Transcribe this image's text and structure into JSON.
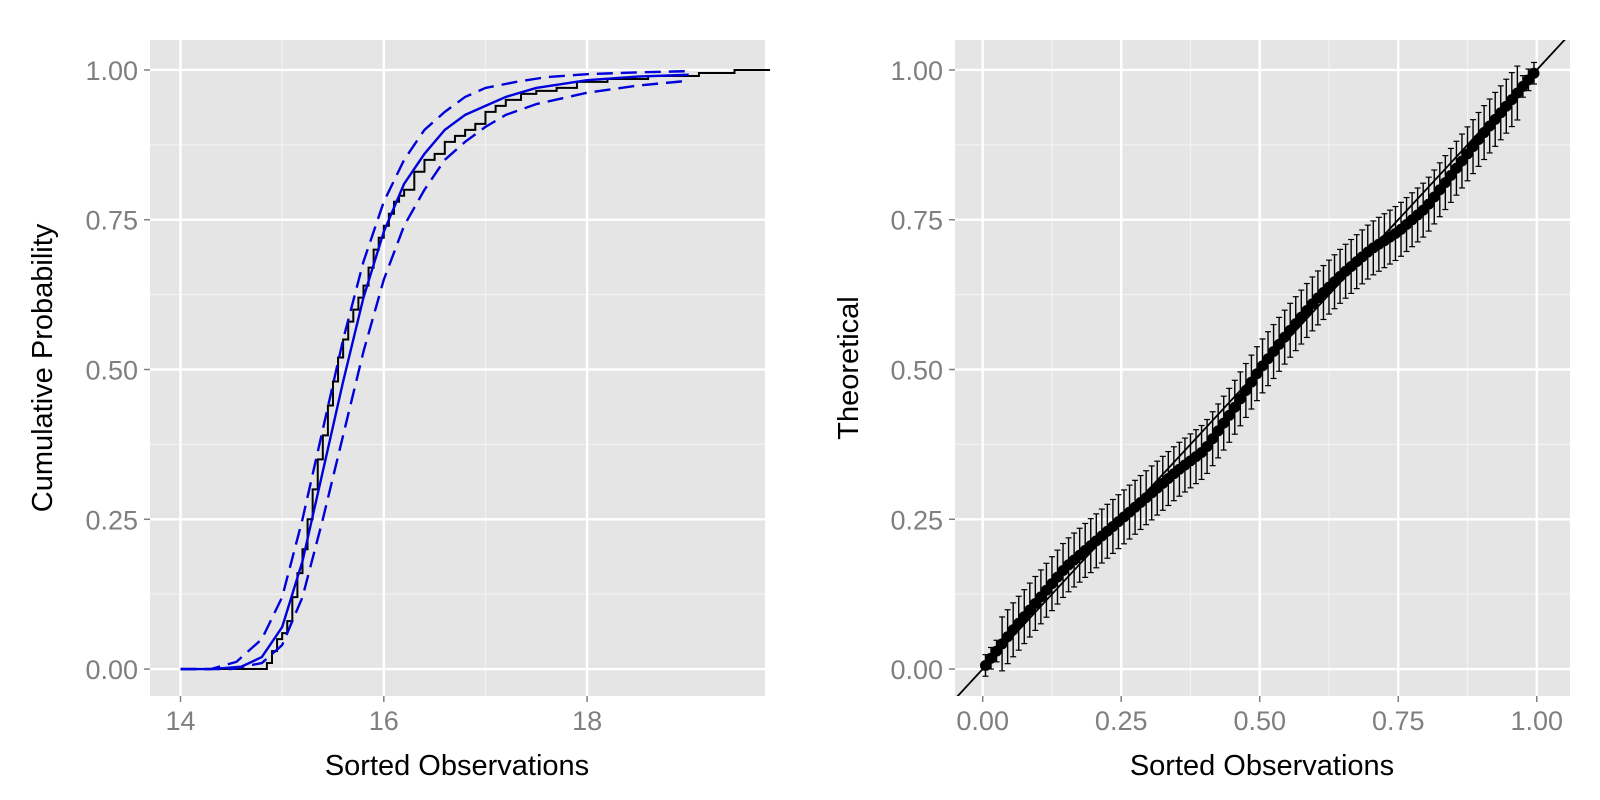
{
  "colors": {
    "panel_bg": "#e5e5e5",
    "grid_major": "#ffffff",
    "grid_minor": "#f2f2f2",
    "tick_label": "#7f7f7f",
    "ecdf": "#000000",
    "fit": "#0000dd",
    "points": "#000000"
  },
  "chart_data": [
    {
      "type": "line",
      "xlabel": "Sorted Observations",
      "ylabel": "Cumulative Probability",
      "xlim": [
        13.7,
        19.75
      ],
      "ylim": [
        -0.045,
        1.05
      ],
      "xticks": [
        14,
        16,
        18
      ],
      "xtick_labels": [
        "14",
        "16",
        "18"
      ],
      "yticks": [
        0,
        0.25,
        0.5,
        0.75,
        1
      ],
      "ytick_labels": [
        "0.00",
        "0.25",
        "0.50",
        "0.75",
        "1.00"
      ],
      "grid": true,
      "series": [
        {
          "style": "step",
          "x": [
            14.0,
            14.85,
            14.9,
            14.95,
            15.0,
            15.05,
            15.1,
            15.15,
            15.2,
            15.25,
            15.3,
            15.35,
            15.4,
            15.45,
            15.5,
            15.55,
            15.6,
            15.65,
            15.7,
            15.75,
            15.8,
            15.85,
            15.9,
            15.95,
            16.0,
            16.05,
            16.1,
            16.15,
            16.2,
            16.3,
            16.4,
            16.5,
            16.6,
            16.7,
            16.8,
            16.9,
            17.0,
            17.1,
            17.2,
            17.35,
            17.5,
            17.7,
            17.9,
            18.2,
            18.6,
            19.1,
            19.45
          ],
          "y": [
            0.0,
            0.01,
            0.03,
            0.05,
            0.06,
            0.08,
            0.12,
            0.16,
            0.2,
            0.25,
            0.3,
            0.35,
            0.39,
            0.44,
            0.48,
            0.52,
            0.55,
            0.58,
            0.6,
            0.62,
            0.64,
            0.67,
            0.7,
            0.72,
            0.74,
            0.76,
            0.78,
            0.79,
            0.8,
            0.83,
            0.85,
            0.86,
            0.88,
            0.89,
            0.9,
            0.91,
            0.93,
            0.94,
            0.95,
            0.96,
            0.965,
            0.97,
            0.98,
            0.985,
            0.99,
            0.995,
            1.0
          ]
        },
        {
          "style": "solid",
          "x": [
            14.0,
            14.3,
            14.6,
            14.8,
            15.0,
            15.2,
            15.4,
            15.6,
            15.8,
            16.0,
            16.2,
            16.4,
            16.6,
            16.8,
            17.0,
            17.2,
            17.5,
            18.0,
            18.5,
            19.0
          ],
          "y": [
            0.0,
            0.0,
            0.004,
            0.02,
            0.07,
            0.18,
            0.33,
            0.48,
            0.62,
            0.73,
            0.81,
            0.86,
            0.9,
            0.925,
            0.94,
            0.955,
            0.97,
            0.983,
            0.989,
            0.992
          ]
        },
        {
          "style": "dashed",
          "x": [
            14.0,
            14.3,
            14.55,
            14.8,
            15.0,
            15.2,
            15.4,
            15.6,
            15.8,
            16.0,
            16.2,
            16.4,
            16.6,
            16.8,
            17.0,
            17.3,
            17.6,
            18.0,
            18.5,
            19.0
          ],
          "y": [
            0.0,
            0.0,
            0.012,
            0.05,
            0.12,
            0.25,
            0.4,
            0.55,
            0.68,
            0.78,
            0.85,
            0.9,
            0.93,
            0.955,
            0.97,
            0.98,
            0.988,
            0.993,
            0.996,
            0.998
          ]
        },
        {
          "style": "dashed",
          "x": [
            14.0,
            14.5,
            14.8,
            15.0,
            15.2,
            15.4,
            15.6,
            15.8,
            16.0,
            16.2,
            16.4,
            16.6,
            16.8,
            17.0,
            17.2,
            17.5,
            18.0,
            18.5,
            19.0
          ],
          "y": [
            0.0,
            0.0,
            0.01,
            0.04,
            0.12,
            0.25,
            0.39,
            0.53,
            0.65,
            0.74,
            0.8,
            0.85,
            0.88,
            0.905,
            0.925,
            0.943,
            0.962,
            0.974,
            0.982
          ]
        }
      ]
    },
    {
      "type": "scatter",
      "xlabel": "Sorted Observations",
      "ylabel": "Theoretical",
      "xlim": [
        -0.05,
        1.06
      ],
      "ylim": [
        -0.045,
        1.05
      ],
      "xticks": [
        0,
        0.25,
        0.5,
        0.75,
        1
      ],
      "xtick_labels": [
        "0.00",
        "0.25",
        "0.50",
        "0.75",
        "1.00"
      ],
      "yticks": [
        0,
        0.25,
        0.5,
        0.75,
        1
      ],
      "ytick_labels": [
        "0.00",
        "0.25",
        "0.50",
        "0.75",
        "1.00"
      ],
      "grid": true,
      "reference_line": {
        "slope": 1,
        "intercept": 0
      },
      "points": {
        "n": 100,
        "x_range": [
          0.005,
          0.995
        ],
        "y_deviation": {
          "x": [
            0.0,
            0.05,
            0.1,
            0.15,
            0.2,
            0.25,
            0.3,
            0.35,
            0.4,
            0.45,
            0.5,
            0.55,
            0.6,
            0.65,
            0.7,
            0.75,
            0.8,
            0.85,
            0.9,
            0.95,
            1.0
          ],
          "dy": [
            0.0,
            0.01,
            0.015,
            0.02,
            0.01,
            0.0,
            -0.01,
            -0.02,
            -0.035,
            -0.02,
            0.0,
            0.01,
            0.015,
            0.01,
            0.0,
            -0.02,
            -0.03,
            -0.02,
            -0.01,
            -0.005,
            0.0
          ]
        },
        "error_halfwidth": 0.045
      }
    }
  ]
}
